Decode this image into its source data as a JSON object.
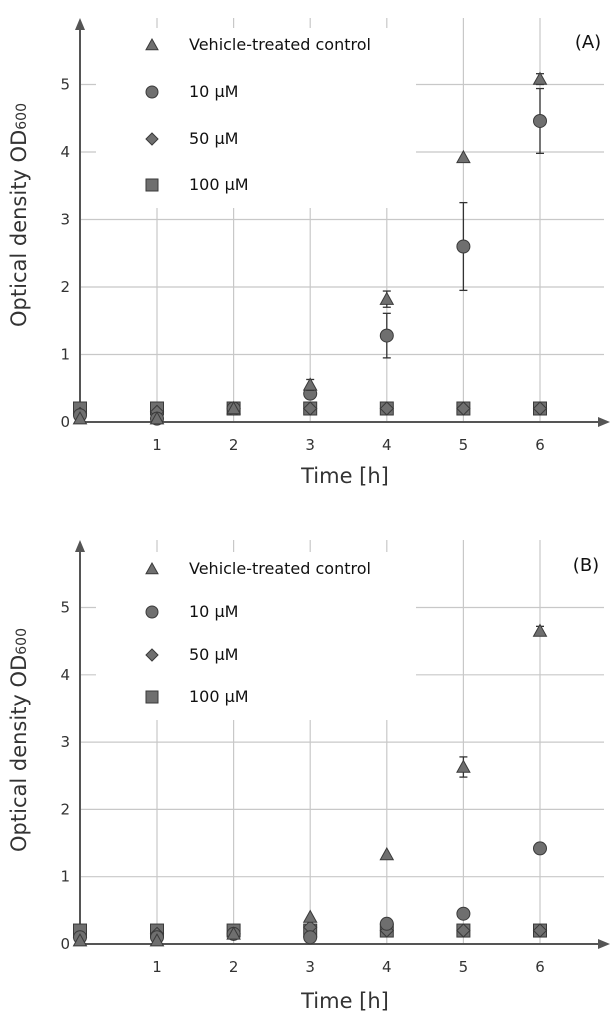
{
  "chart_data": [
    {
      "type": "scatter",
      "panel_label": "(A)",
      "xlabel": "Time [h]",
      "ylabel": "Optical density OD",
      "ylabel_subscript": "600",
      "x_ticks": [
        "1",
        "2",
        "3",
        "4",
        "5",
        "6"
      ],
      "y_ticks": [
        "0",
        "1",
        "2",
        "3",
        "4",
        "5"
      ],
      "xlim": [
        0,
        7
      ],
      "ylim": [
        0,
        5.9
      ],
      "grid": true,
      "legend_position": "top-left",
      "series": [
        {
          "name": "Vehicle-treated control",
          "marker": "triangle",
          "x": [
            0,
            1,
            2,
            3,
            4,
            5,
            6
          ],
          "y": [
            0.05,
            0.05,
            0.2,
            0.55,
            1.82,
            3.92,
            5.08
          ],
          "error": [
            0,
            0,
            0,
            0.08,
            0.12,
            0,
            0.08
          ]
        },
        {
          "name": "10 µM",
          "marker": "circle",
          "x": [
            0,
            1,
            2,
            3,
            4,
            5,
            6
          ],
          "y": [
            0.1,
            0.05,
            0.2,
            0.42,
            1.28,
            2.6,
            4.46
          ],
          "error": [
            0,
            0,
            0,
            0.05,
            0.33,
            0.65,
            0.48
          ]
        },
        {
          "name": "50 µM",
          "marker": "diamond",
          "x": [
            0,
            1,
            2,
            3,
            4,
            5,
            6
          ],
          "y": [
            0.12,
            0.15,
            0.2,
            0.2,
            0.2,
            0.2,
            0.2
          ],
          "error": [
            0,
            0,
            0,
            0,
            0,
            0,
            0
          ]
        },
        {
          "name": "100 µM",
          "marker": "square",
          "x": [
            0,
            1,
            2,
            3,
            4,
            5,
            6
          ],
          "y": [
            0.2,
            0.2,
            0.2,
            0.2,
            0.2,
            0.2,
            0.2
          ],
          "error": [
            0,
            0,
            0,
            0,
            0,
            0,
            0
          ]
        }
      ]
    },
    {
      "type": "scatter",
      "panel_label": "(B)",
      "xlabel": "Time [h]",
      "ylabel": "Optical density OD",
      "ylabel_subscript": "600",
      "x_ticks": [
        "1",
        "2",
        "3",
        "4",
        "5",
        "6"
      ],
      "y_ticks": [
        "0",
        "1",
        "2",
        "3",
        "4",
        "5"
      ],
      "xlim": [
        0,
        7
      ],
      "ylim": [
        0,
        5.9
      ],
      "grid": true,
      "legend_position": "top-left",
      "series": [
        {
          "name": "Vehicle-treated control",
          "marker": "triangle",
          "x": [
            0,
            1,
            2,
            3,
            4,
            5,
            6
          ],
          "y": [
            0.05,
            0.05,
            0.15,
            0.4,
            1.33,
            2.63,
            4.65
          ],
          "error": [
            0,
            0,
            0,
            0,
            0,
            0.15,
            0.07
          ]
        },
        {
          "name": "10 µM",
          "marker": "circle",
          "x": [
            0,
            1,
            2,
            3,
            4,
            5,
            6
          ],
          "y": [
            0.1,
            0.1,
            0.15,
            0.1,
            0.3,
            0.45,
            1.42
          ],
          "error": [
            0,
            0,
            0,
            0,
            0,
            0,
            0
          ]
        },
        {
          "name": "50 µM",
          "marker": "diamond",
          "x": [
            0,
            1,
            2,
            3,
            4,
            5,
            6
          ],
          "y": [
            0.1,
            0.15,
            0.15,
            0.25,
            0.2,
            0.2,
            0.2
          ],
          "error": [
            0,
            0,
            0,
            0,
            0,
            0,
            0
          ]
        },
        {
          "name": "100 µM",
          "marker": "square",
          "x": [
            0,
            1,
            2,
            3,
            4,
            5,
            6
          ],
          "y": [
            0.2,
            0.2,
            0.2,
            0.2,
            0.2,
            0.2,
            0.2
          ],
          "error": [
            0,
            0,
            0,
            0,
            0,
            0,
            0
          ]
        }
      ]
    }
  ],
  "colors": {
    "marker_fill": "#6f6f6f",
    "marker_stroke": "#3a3a3a",
    "axis": "#555555",
    "grid": "#c8c8c8"
  }
}
